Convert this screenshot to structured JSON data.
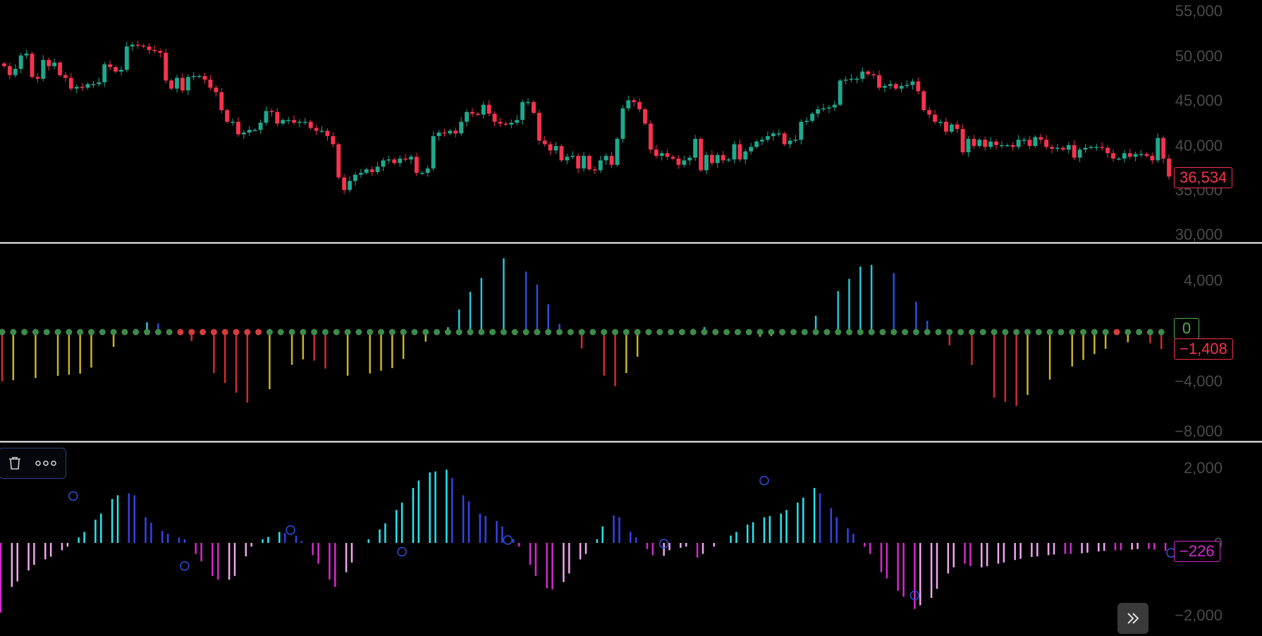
{
  "colors": {
    "up": "#1fa88e",
    "down": "#f5334d",
    "separator": "#ffffff",
    "axis_text": "#4a4a4a",
    "osc_red": "#d12b30",
    "osc_yellow": "#c9b424",
    "osc_cyan": "#27c5d9",
    "osc_blue": "#2a4fe0",
    "dot_green": "#3d8a4a",
    "dot_red": "#d43d3d",
    "mom_cyan": "#27e6f0",
    "mom_blue": "#3344e8",
    "mom_magenta": "#d629d0",
    "mom_pink": "#f2a6f0",
    "marker": "#2f4fd8"
  },
  "price_pane": {
    "axis_labels": [
      "55,000",
      "50,000",
      "45,000",
      "40,000",
      "35,000",
      "30,000"
    ],
    "last_value_label": "36,534",
    "badge_color": "#f5334d"
  },
  "osc_pane": {
    "axis_labels": [
      "4,000",
      "−4,000",
      "−8,000"
    ],
    "zero_label": "0",
    "zero_badge_color": "#4caf50",
    "last_value_label": "−1,408",
    "last_badge_color": "#f5334d"
  },
  "mom_pane": {
    "axis_labels": [
      "2,000",
      "−2,000"
    ],
    "hidden_zero_label": "0",
    "last_value_label": "−226",
    "badge_color": "#d629d0"
  },
  "toolbar": {
    "delete_icon": "trash-icon",
    "more_icon": "more-horizontal-icon"
  },
  "nav": {
    "scroll_icon": "chevrons-right-icon"
  },
  "chart_data": [
    {
      "type": "candlestick",
      "title": "",
      "ylim": [
        30000,
        55000
      ],
      "y_ticks": [
        30000,
        35000,
        40000,
        45000,
        50000,
        55000
      ],
      "last_value": 36534,
      "closes": [
        48800,
        47800,
        48500,
        50000,
        50200,
        47600,
        47400,
        49500,
        48800,
        49200,
        47800,
        47500,
        46300,
        46500,
        46400,
        46800,
        46800,
        47000,
        49000,
        48700,
        48200,
        48400,
        51000,
        51200,
        51100,
        51000,
        50600,
        50500,
        50300,
        47200,
        46300,
        47500,
        46100,
        47600,
        47700,
        47700,
        47300,
        46400,
        45900,
        43900,
        42600,
        42600,
        41200,
        41400,
        41700,
        41700,
        42500,
        43800,
        43700,
        42400,
        42800,
        42800,
        42500,
        42600,
        42600,
        41900,
        41600,
        41600,
        41000,
        40100,
        36400,
        35000,
        36000,
        36700,
        36900,
        37300,
        37000,
        37600,
        38300,
        38400,
        38000,
        38500,
        38400,
        38700,
        36900,
        36900,
        37400,
        41000,
        41400,
        41300,
        41600,
        41300,
        42600,
        43700,
        43500,
        43400,
        44500,
        43500,
        42600,
        42400,
        42300,
        42500,
        42800,
        44800,
        44800,
        43600,
        40500,
        40100,
        39400,
        39900,
        38300,
        38700,
        38800,
        37400,
        38800,
        37300,
        37200,
        38300,
        38800,
        37800,
        40700,
        44100,
        45000,
        44800,
        44000,
        42400,
        39500,
        38800,
        39100,
        38700,
        38500,
        37800,
        38300,
        38600,
        40700,
        37200,
        38900,
        38000,
        38900,
        38300,
        38400,
        40100,
        38400,
        39300,
        39800,
        40400,
        40600,
        41000,
        41300,
        41300,
        40100,
        40500,
        40600,
        42600,
        42700,
        43500,
        44000,
        44100,
        44200,
        44500,
        47200,
        47300,
        47400,
        47400,
        48200,
        47900,
        47800,
        46400,
        46600,
        46800,
        46300,
        46600,
        46700,
        47100,
        46000,
        43900,
        43400,
        42600,
        42600,
        41500,
        42300,
        41800,
        39200,
        40700,
        39900,
        40600,
        39800,
        40400,
        40000,
        40000,
        40000,
        39800,
        40600,
        40600,
        39900,
        40900,
        40600,
        39800,
        39600,
        39700,
        39500,
        40000,
        38600,
        39500,
        39700,
        39800,
        39800,
        39700,
        39100,
        38500,
        38500,
        39100,
        38700,
        39000,
        39000,
        38800,
        38300,
        40800,
        38500,
        36500
      ]
    },
    {
      "type": "bar",
      "title": "",
      "ylim": [
        -8000,
        5000
      ],
      "y_ticks": [
        4000,
        0,
        -4000,
        -8000
      ],
      "last_value": -1408,
      "anchors": [
        [
          0,
          -3000
        ],
        [
          15,
          -2500
        ],
        [
          18,
          -1500
        ],
        [
          22,
          -300
        ],
        [
          24,
          200
        ],
        [
          27,
          800
        ],
        [
          30,
          0
        ],
        [
          33,
          -400
        ],
        [
          36,
          -800
        ],
        [
          38,
          -2500
        ],
        [
          45,
          -4600
        ],
        [
          52,
          -2000
        ],
        [
          55,
          -1500
        ],
        [
          60,
          -2700
        ],
        [
          65,
          -2600
        ],
        [
          70,
          -2200
        ],
        [
          75,
          -800
        ],
        [
          80,
          300
        ],
        [
          85,
          3000
        ],
        [
          90,
          4500
        ],
        [
          95,
          3500
        ],
        [
          100,
          500
        ],
        [
          104,
          -1000
        ],
        [
          106,
          -2000
        ],
        [
          110,
          -3300
        ],
        [
          112,
          -2500
        ],
        [
          115,
          -1000
        ],
        [
          118,
          -100
        ],
        [
          124,
          200
        ],
        [
          126,
          300
        ],
        [
          130,
          0
        ],
        [
          135,
          -300
        ],
        [
          140,
          -200
        ],
        [
          143,
          0
        ],
        [
          146,
          1000
        ],
        [
          150,
          2500
        ],
        [
          154,
          4000
        ],
        [
          158,
          4200
        ],
        [
          162,
          3000
        ],
        [
          166,
          700
        ],
        [
          170,
          -800
        ],
        [
          173,
          -1500
        ],
        [
          178,
          -4000
        ],
        [
          182,
          -4500
        ],
        [
          185,
          -3500
        ],
        [
          190,
          -2500
        ],
        [
          195,
          -1500
        ],
        [
          200,
          -700
        ],
        [
          205,
          -500
        ],
        [
          210,
          -1408
        ]
      ],
      "count": 210
    },
    {
      "type": "bar",
      "title": "",
      "ylim": [
        -2000,
        2000
      ],
      "y_ticks": [
        2000,
        0,
        -2000
      ],
      "last_value": -226,
      "anchors": [
        [
          0,
          -1900
        ],
        [
          2,
          -1200
        ],
        [
          6,
          -600
        ],
        [
          10,
          -300
        ],
        [
          13,
          0
        ],
        [
          15,
          300
        ],
        [
          18,
          800
        ],
        [
          20,
          1200
        ],
        [
          22,
          1400
        ],
        [
          24,
          1300
        ],
        [
          26,
          700
        ],
        [
          28,
          400
        ],
        [
          30,
          250
        ],
        [
          33,
          100
        ],
        [
          35,
          -300
        ],
        [
          38,
          -900
        ],
        [
          40,
          -1100
        ],
        [
          42,
          -900
        ],
        [
          45,
          -100
        ],
        [
          47,
          100
        ],
        [
          50,
          300
        ],
        [
          53,
          200
        ],
        [
          55,
          -100
        ],
        [
          58,
          -800
        ],
        [
          60,
          -1200
        ],
        [
          62,
          -800
        ],
        [
          65,
          0
        ],
        [
          67,
          200
        ],
        [
          70,
          700
        ],
        [
          73,
          1300
        ],
        [
          76,
          1900
        ],
        [
          80,
          2000
        ],
        [
          83,
          1300
        ],
        [
          86,
          800
        ],
        [
          89,
          600
        ],
        [
          91,
          300
        ],
        [
          94,
          -300
        ],
        [
          97,
          -1200
        ],
        [
          100,
          -1300
        ],
        [
          103,
          -600
        ],
        [
          105,
          -300
        ],
        [
          107,
          100
        ],
        [
          109,
          800
        ],
        [
          111,
          700
        ],
        [
          113,
          300
        ],
        [
          115,
          0
        ],
        [
          118,
          -500
        ],
        [
          120,
          -200
        ],
        [
          123,
          -100
        ],
        [
          125,
          -400
        ],
        [
          127,
          -200
        ],
        [
          129,
          0
        ],
        [
          131,
          200
        ],
        [
          134,
          500
        ],
        [
          137,
          700
        ],
        [
          140,
          800
        ],
        [
          143,
          1100
        ],
        [
          146,
          1500
        ],
        [
          148,
          1200
        ],
        [
          150,
          700
        ],
        [
          152,
          400
        ],
        [
          154,
          100
        ],
        [
          156,
          -300
        ],
        [
          158,
          -800
        ],
        [
          161,
          -1300
        ],
        [
          164,
          -1800
        ],
        [
          167,
          -1500
        ],
        [
          169,
          -1000
        ],
        [
          172,
          -500
        ],
        [
          175,
          -700
        ],
        [
          178,
          -600
        ],
        [
          181,
          -500
        ],
        [
          184,
          -400
        ],
        [
          187,
          -350
        ],
        [
          190,
          -300
        ],
        [
          193,
          -300
        ],
        [
          196,
          -250
        ],
        [
          199,
          -200
        ],
        [
          202,
          -200
        ],
        [
          205,
          -150
        ],
        [
          208,
          -200
        ],
        [
          210,
          -226
        ]
      ],
      "count": 210,
      "markers": [
        [
          13,
          1280
        ],
        [
          33,
          -630
        ],
        [
          52,
          350
        ],
        [
          72,
          -240
        ],
        [
          91,
          80
        ],
        [
          119,
          -20
        ],
        [
          137,
          1700
        ],
        [
          164,
          -1430
        ],
        [
          210,
          -270
        ]
      ]
    }
  ]
}
